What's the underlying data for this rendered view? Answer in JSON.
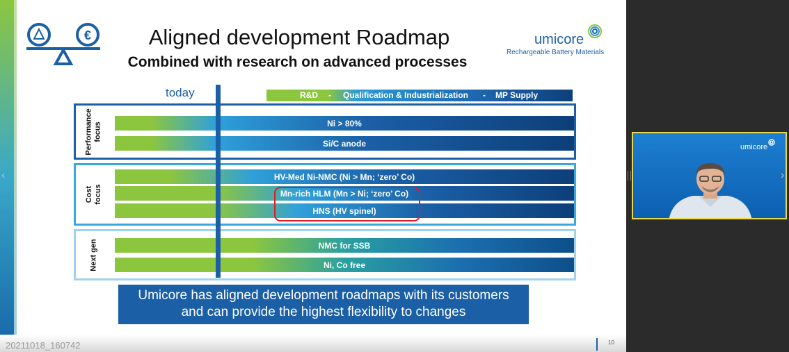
{
  "slide": {
    "title": "Aligned development Roadmap",
    "subtitle": "Combined with research on advanced processes",
    "logo": {
      "name": "umicore",
      "tagline": "Rechargeable Battery Materials"
    },
    "today_label": "today",
    "phases": {
      "rd": "R&D",
      "sep1": "-",
      "qual": "Qualification & Industrialization",
      "sep2": "-",
      "mp": "MP Supply"
    },
    "groups": [
      {
        "label": "Performance focus",
        "bars": [
          "Ni > 80%",
          "Si/C anode"
        ]
      },
      {
        "label": "Cost focus",
        "bars": [
          "HV-Med Ni-NMC (Ni > Mn; ‘zero’ Co)",
          "Mn-rich HLM (Mn > Ni; ‘zero’ Co)",
          "HNS (HV spinel)"
        ]
      },
      {
        "label": "Next gen",
        "bars": [
          "NMC for SSB",
          "Ni, Co free"
        ]
      }
    ],
    "message_line1": "Umicore has aligned development roadmaps with its customers",
    "message_line2": "and can provide the highest flexibility to changes",
    "page_number": "10"
  },
  "recording": {
    "timestamp": "20211018_160742"
  },
  "video": {
    "logo": "umicore"
  },
  "nav": {
    "left": "‹",
    "right": "›"
  },
  "colors": {
    "brand_blue": "#1b5fa6",
    "green": "#8cc63f",
    "highlight_red": "#e01b24"
  }
}
